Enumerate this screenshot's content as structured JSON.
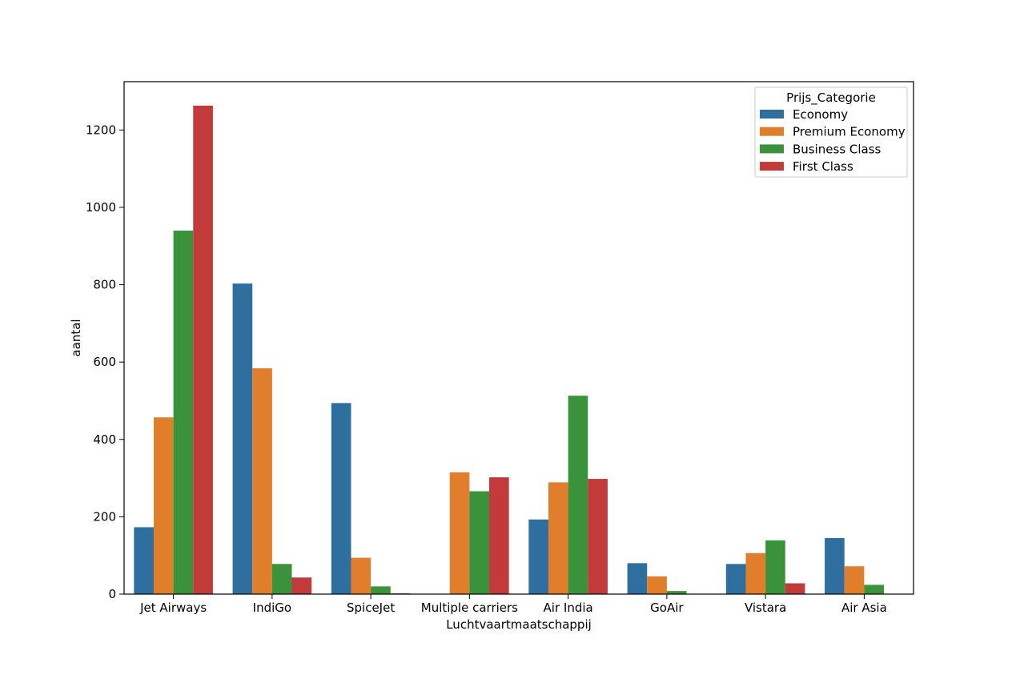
{
  "chart_data": {
    "type": "bar",
    "title": "",
    "xlabel": "Luchtvaartmaatschappij",
    "ylabel": "aantal",
    "ylim": [
      0,
      1325
    ],
    "yticks": [
      0,
      200,
      400,
      600,
      800,
      1000,
      1200
    ],
    "grid": false,
    "legend_title": "Prijs_Categorie",
    "legend_position": "top-right",
    "categories": [
      "Jet Airways",
      "IndiGo",
      "SpiceJet",
      "Multiple carriers",
      "Air India",
      "GoAir",
      "Vistara",
      "Air Asia"
    ],
    "series": [
      {
        "name": "Economy",
        "color": "#2e6fa0",
        "values": [
          173,
          803,
          494,
          0,
          193,
          80,
          78,
          145
        ]
      },
      {
        "name": "Premium Economy",
        "color": "#e07e2c",
        "values": [
          457,
          584,
          94,
          315,
          289,
          46,
          106,
          72
        ]
      },
      {
        "name": "Business Class",
        "color": "#3a923a",
        "values": [
          940,
          78,
          20,
          266,
          513,
          8,
          139,
          24
        ]
      },
      {
        "name": "First Class",
        "color": "#c23a3a",
        "values": [
          1263,
          43,
          2,
          302,
          298,
          0,
          28,
          0
        ]
      }
    ]
  }
}
